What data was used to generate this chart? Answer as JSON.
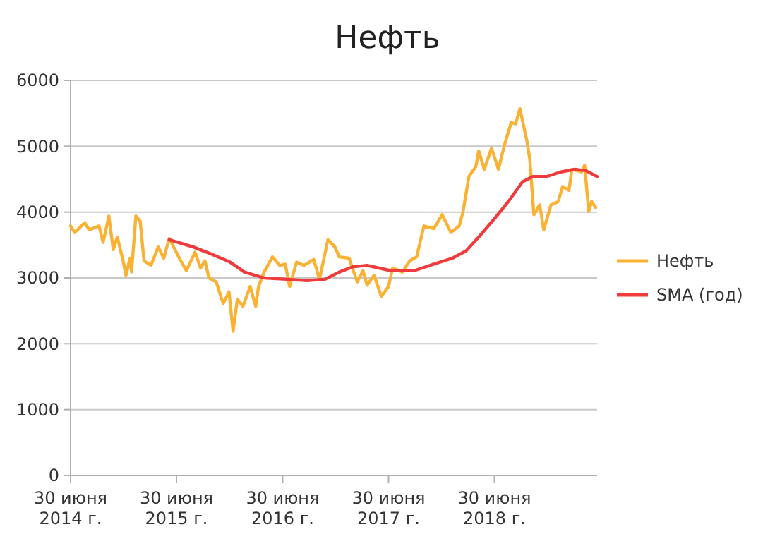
{
  "chart_data": {
    "type": "line",
    "title": "Нефть",
    "xlim": [
      "2014-06-30",
      "2019-06-19"
    ],
    "xticks": [
      {
        "value": "2014-06-30",
        "label": "30 июня 2014 г."
      },
      {
        "value": "2015-06-30",
        "label": "30 июня 2015 г."
      },
      {
        "value": "2016-06-30",
        "label": "30 июня 2016 г."
      },
      {
        "value": "2017-06-30",
        "label": "30 июня 2017 г."
      },
      {
        "value": "2018-06-30",
        "label": "30 июня 2018 г."
      }
    ],
    "ylim": [
      0,
      6000
    ],
    "yticks": [
      0,
      1000,
      2000,
      3000,
      4000,
      5000,
      6000
    ],
    "grid": "y",
    "legend": "right",
    "line_style": "solid",
    "marker": "none",
    "series": [
      {
        "name": "Нефть",
        "color": "#f9b234",
        "x": [
          "2014-06-30",
          "2014-07-14",
          "2014-08-18",
          "2014-09-02",
          "2014-10-06",
          "2014-10-20",
          "2014-11-09",
          "2014-11-24",
          "2014-12-08",
          "2014-12-28",
          "2015-01-07",
          "2015-01-21",
          "2015-01-26",
          "2015-02-10",
          "2015-02-25",
          "2015-03-10",
          "2015-04-03",
          "2015-04-28",
          "2015-05-17",
          "2015-06-05",
          "2015-07-10",
          "2015-08-03",
          "2015-09-02",
          "2015-09-21",
          "2015-10-06",
          "2015-10-20",
          "2015-11-14",
          "2015-12-08",
          "2015-12-28",
          "2016-01-11",
          "2016-01-26",
          "2016-02-14",
          "2016-03-10",
          "2016-03-29",
          "2016-04-08",
          "2016-04-27",
          "2016-05-26",
          "2016-06-20",
          "2016-07-09",
          "2016-07-24",
          "2016-08-17",
          "2016-09-11",
          "2016-10-15",
          "2016-11-04",
          "2016-12-03",
          "2016-12-27",
          "2017-01-11",
          "2017-02-14",
          "2017-03-14",
          "2017-04-03",
          "2017-04-17",
          "2017-05-11",
          "2017-06-05",
          "2017-06-30",
          "2017-07-14",
          "2017-08-17",
          "2017-09-11",
          "2017-10-05",
          "2017-10-30",
          "2017-12-03",
          "2018-01-01",
          "2018-01-31",
          "2018-03-01",
          "2018-03-14",
          "2018-04-03",
          "2018-04-27",
          "2018-05-07",
          "2018-05-26",
          "2018-06-20",
          "2018-07-14",
          "2018-08-03",
          "2018-08-27",
          "2018-09-11",
          "2018-09-26",
          "2018-10-20",
          "2018-10-30",
          "2018-11-13",
          "2018-12-03",
          "2018-12-17",
          "2019-01-11",
          "2019-02-05",
          "2019-02-20",
          "2019-03-14",
          "2019-03-24",
          "2019-04-27",
          "2019-05-07",
          "2019-05-21",
          "2019-05-31",
          "2019-06-14"
        ],
        "values": [
          3790,
          3690,
          3840,
          3730,
          3790,
          3540,
          3940,
          3430,
          3620,
          3260,
          3040,
          3300,
          3090,
          3940,
          3860,
          3260,
          3190,
          3470,
          3300,
          3600,
          3300,
          3110,
          3390,
          3150,
          3260,
          3000,
          2940,
          2610,
          2790,
          2190,
          2680,
          2570,
          2870,
          2570,
          2870,
          3090,
          3320,
          3190,
          3210,
          2870,
          3240,
          3190,
          3280,
          2980,
          3580,
          3470,
          3320,
          3300,
          2940,
          3110,
          2890,
          3040,
          2720,
          2870,
          3150,
          3090,
          3260,
          3320,
          3790,
          3750,
          3960,
          3690,
          3790,
          4010,
          4540,
          4690,
          4930,
          4650,
          4970,
          4650,
          5010,
          5360,
          5340,
          5570,
          5080,
          4800,
          3960,
          4110,
          3730,
          4110,
          4160,
          4390,
          4330,
          4650,
          4610,
          4710,
          4010,
          4160,
          4070
        ]
      },
      {
        "name": "SMA (год)",
        "color": "#ef3b3b",
        "x": [
          "2015-06-05",
          "2015-08-27",
          "2015-10-30",
          "2016-01-01",
          "2016-02-19",
          "2016-04-27",
          "2016-07-14",
          "2016-09-21",
          "2016-11-23",
          "2017-01-11",
          "2017-02-28",
          "2017-04-17",
          "2017-07-09",
          "2017-09-26",
          "2017-12-03",
          "2018-02-05",
          "2018-03-24",
          "2018-05-11",
          "2018-06-30",
          "2018-08-17",
          "2018-10-05",
          "2018-11-09",
          "2018-12-27",
          "2019-02-14",
          "2019-04-03",
          "2019-05-11",
          "2019-06-19"
        ],
        "values": [
          3580,
          3470,
          3360,
          3240,
          3090,
          3000,
          2980,
          2960,
          2980,
          3090,
          3170,
          3190,
          3110,
          3110,
          3210,
          3300,
          3410,
          3640,
          3900,
          4160,
          4460,
          4540,
          4540,
          4610,
          4650,
          4630,
          4540
        ]
      }
    ]
  }
}
